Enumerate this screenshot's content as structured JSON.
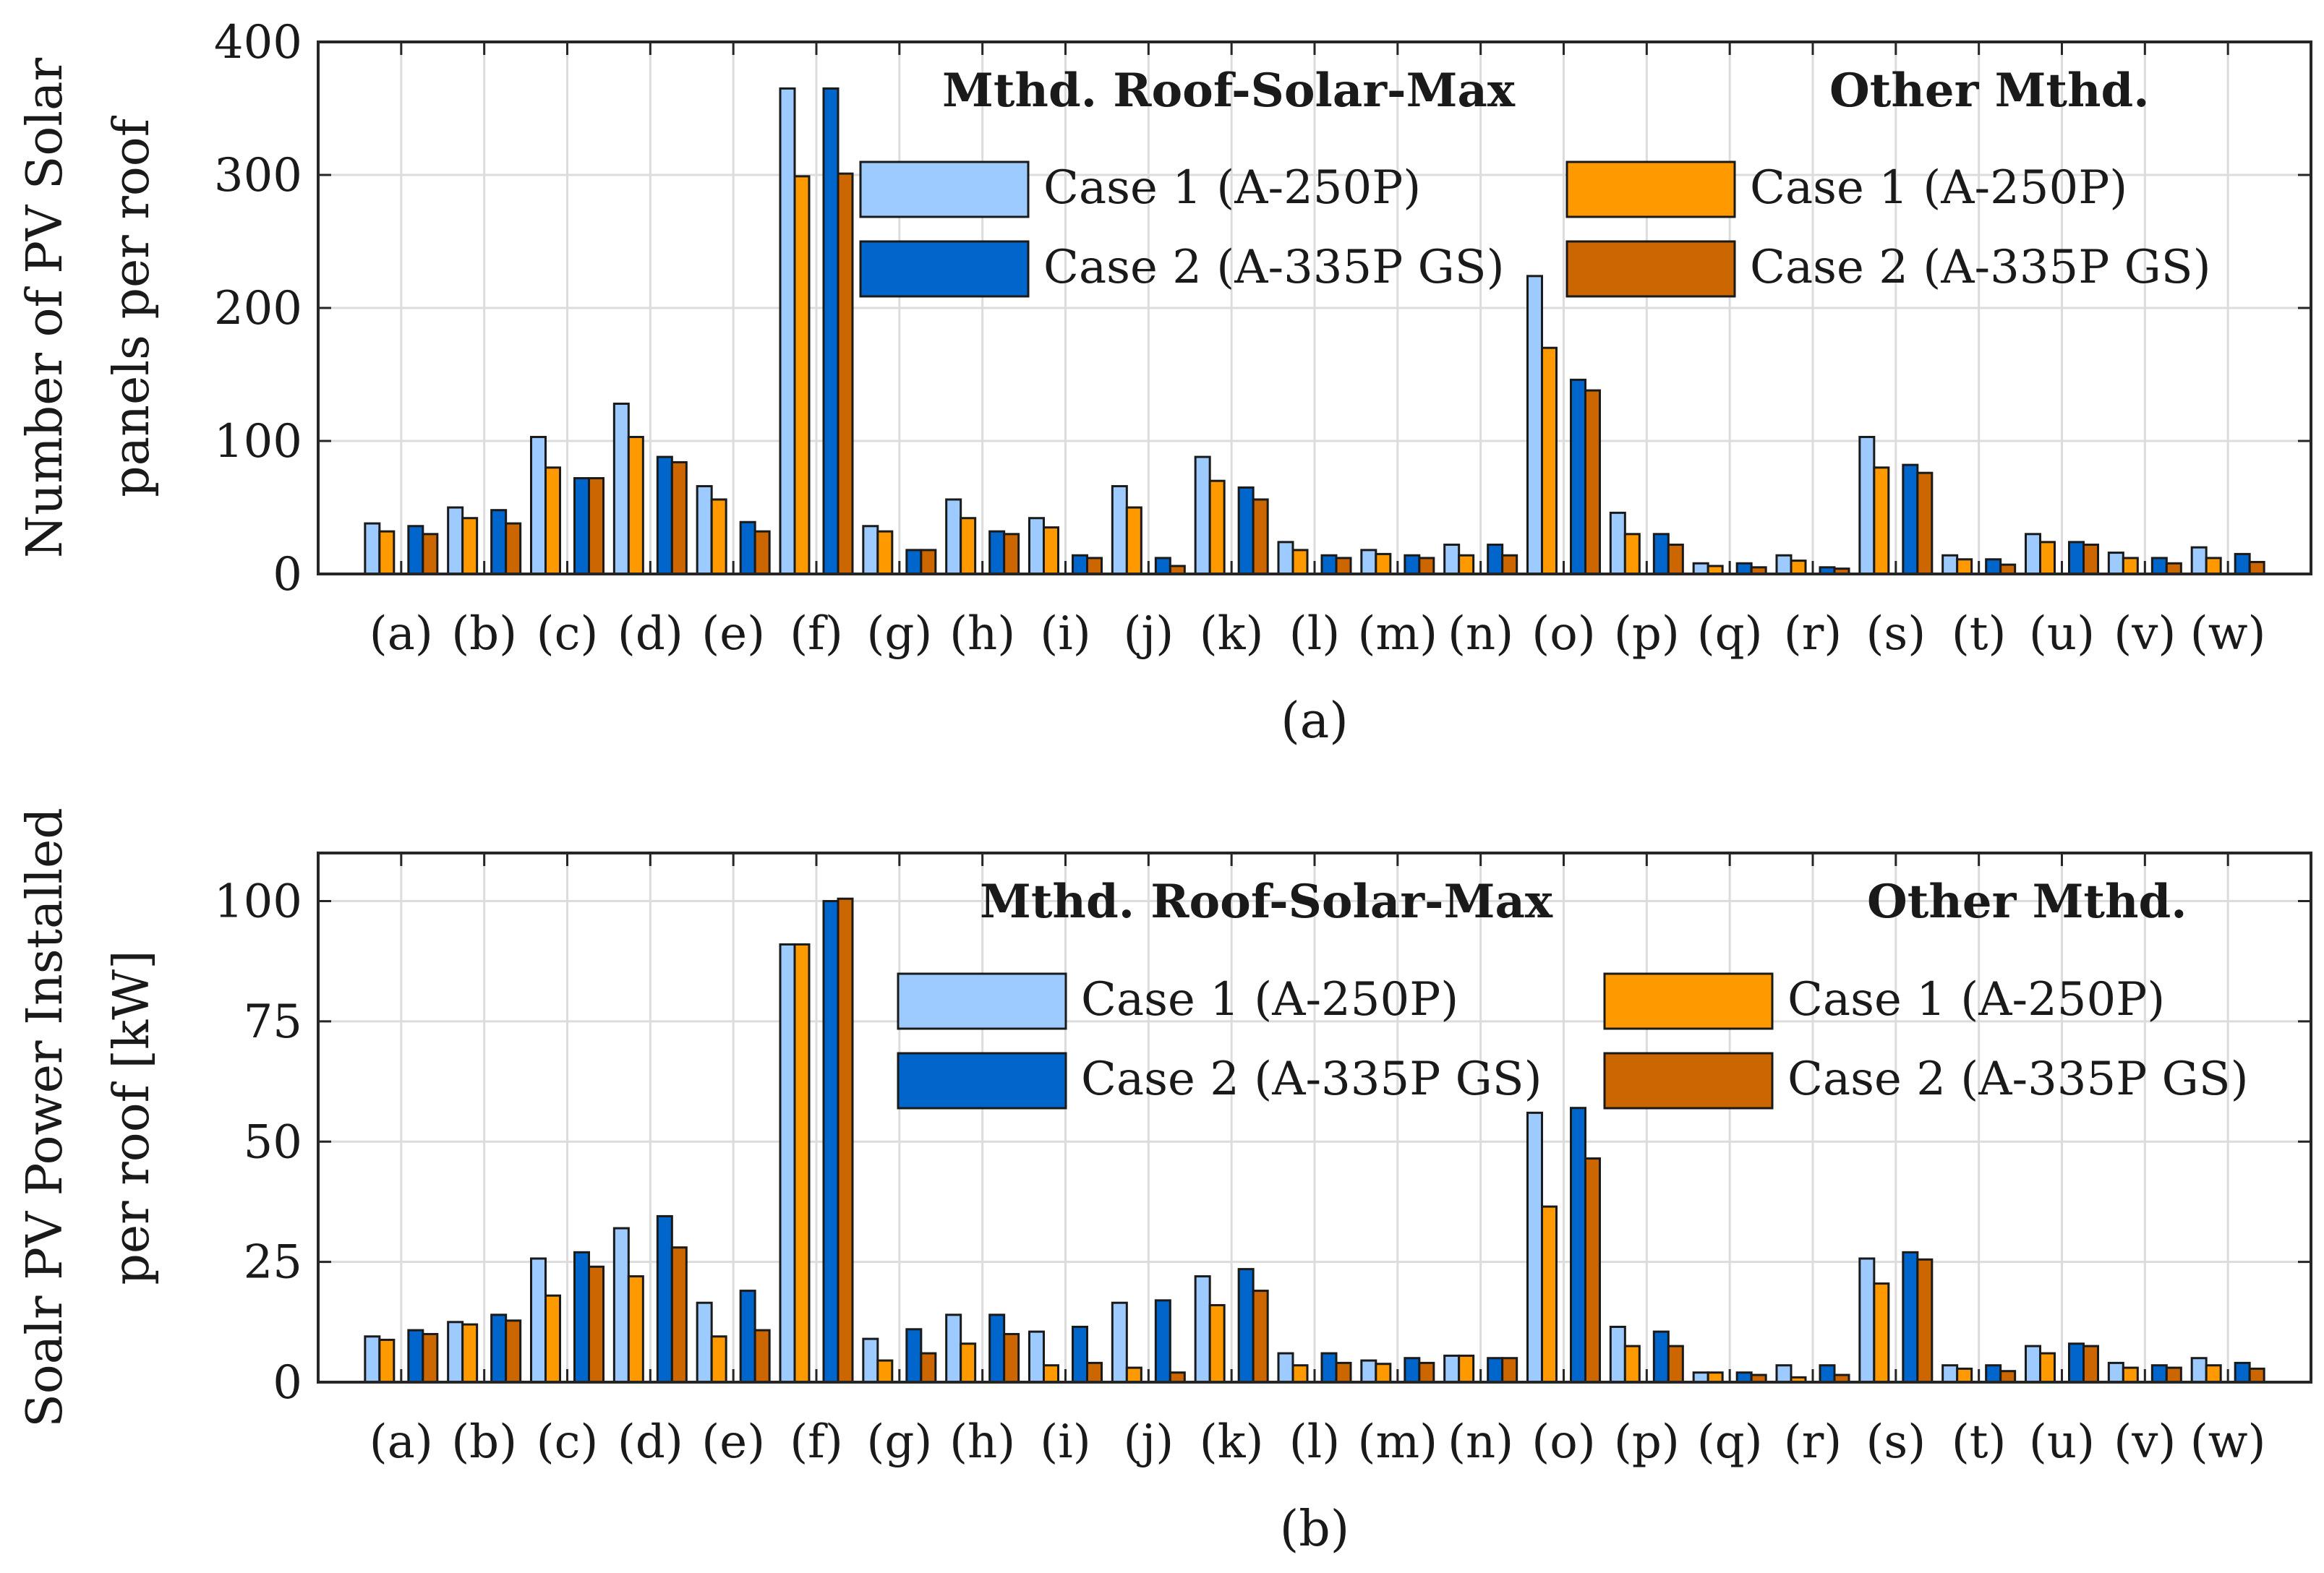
{
  "colors": {
    "case1_roof": "#9ecbff",
    "case2_roof": "#0066cc",
    "case1_other": "#ff9900",
    "case2_other": "#cc6600"
  },
  "chart_data": [
    {
      "type": "bar",
      "caption": "(a)",
      "ylabel_line1": "Number of PV Solar",
      "ylabel_line2": "panels per roof",
      "ylim": [
        0,
        400
      ],
      "yticks": [
        "0",
        "100",
        "200",
        "300",
        "400"
      ],
      "grid": true,
      "categories": [
        "(a)",
        "(b)",
        "(c)",
        "(d)",
        "(e)",
        "(f)",
        "(g)",
        "(h)",
        "(i)",
        "(j)",
        "(k)",
        "(l)",
        "(m)",
        "(n)",
        "(o)",
        "(p)",
        "(q)",
        "(r)",
        "(s)",
        "(t)",
        "(u)",
        "(v)",
        "(w)"
      ],
      "legend_groups": [
        "Mthd. Roof-Solar-Max",
        "Other Mthd."
      ],
      "legend_placement": "top-right",
      "series": [
        {
          "name": "Case 1 (A-250P)",
          "group": "Mthd. Roof-Solar-Max",
          "color": "#9ecbff",
          "values": [
            38,
            50,
            103,
            128,
            66,
            365,
            36,
            56,
            42,
            66,
            88,
            24,
            18,
            22,
            224,
            46,
            8,
            14,
            103,
            14,
            30,
            16,
            20
          ]
        },
        {
          "name": "Case 1 (A-250P)",
          "group": "Other Mthd.",
          "color": "#ff9900",
          "values": [
            32,
            42,
            80,
            103,
            56,
            299,
            32,
            42,
            35,
            50,
            70,
            18,
            15,
            14,
            170,
            30,
            6,
            10,
            80,
            11,
            24,
            12,
            12
          ]
        },
        {
          "name": "Case 2 (A-335P GS)",
          "group": "Mthd. Roof-Solar-Max",
          "color": "#0066cc",
          "values": [
            36,
            48,
            72,
            88,
            39,
            365,
            18,
            32,
            14,
            12,
            65,
            14,
            14,
            22,
            146,
            30,
            8,
            5,
            82,
            11,
            24,
            12,
            15
          ]
        },
        {
          "name": "Case 2 (A-335P GS)",
          "group": "Other Mthd.",
          "color": "#cc6600",
          "values": [
            30,
            38,
            72,
            84,
            32,
            301,
            18,
            30,
            12,
            6,
            56,
            12,
            12,
            14,
            138,
            22,
            5,
            4,
            76,
            7,
            22,
            8,
            9
          ]
        }
      ]
    },
    {
      "type": "bar",
      "caption": "(b)",
      "ylabel_line1": "Soalr PV Power Installed",
      "ylabel_line2": "per roof [kW]",
      "ylim": [
        0,
        110
      ],
      "yticks": [
        "0",
        "25",
        "50",
        "75",
        "100"
      ],
      "grid": true,
      "categories": [
        "(a)",
        "(b)",
        "(c)",
        "(d)",
        "(e)",
        "(f)",
        "(g)",
        "(h)",
        "(i)",
        "(j)",
        "(k)",
        "(l)",
        "(m)",
        "(n)",
        "(o)",
        "(p)",
        "(q)",
        "(r)",
        "(s)",
        "(t)",
        "(u)",
        "(v)",
        "(w)"
      ],
      "legend_groups": [
        "Mthd. Roof-Solar-Max",
        "Other Mthd."
      ],
      "legend_placement": "top-right",
      "series": [
        {
          "name": "Case 1 (A-250P)",
          "group": "Mthd. Roof-Solar-Max",
          "color": "#9ecbff",
          "values": [
            9.5,
            12.5,
            25.7,
            32,
            16.5,
            91,
            9,
            14,
            10.5,
            16.5,
            22,
            6,
            4.5,
            5.5,
            56,
            11.5,
            2,
            3.5,
            25.7,
            3.5,
            7.5,
            4,
            5
          ]
        },
        {
          "name": "Case 1 (A-250P)",
          "group": "Other Mthd.",
          "color": "#ff9900",
          "values": [
            8.8,
            12,
            18,
            22,
            9.5,
            91,
            4.5,
            8,
            3.5,
            3,
            16,
            3.5,
            3.8,
            5.5,
            36.5,
            7.5,
            2,
            1,
            20.5,
            2.8,
            6,
            3,
            3.5
          ]
        },
        {
          "name": "Case 2 (A-335P GS)",
          "group": "Mthd. Roof-Solar-Max",
          "color": "#0066cc",
          "values": [
            10.8,
            14,
            27,
            34.5,
            19,
            100,
            11,
            14,
            11.5,
            17,
            23.5,
            6,
            5,
            5,
            57,
            10.5,
            2,
            3.5,
            27,
            3.5,
            8,
            3.5,
            4
          ]
        },
        {
          "name": "Case 2 (A-335P GS)",
          "group": "Other Mthd.",
          "color": "#cc6600",
          "values": [
            10,
            12.8,
            24,
            28,
            10.8,
            100.5,
            6,
            10,
            4,
            2,
            19,
            4,
            4,
            5,
            46.5,
            7.5,
            1.5,
            1.5,
            25.5,
            2.3,
            7.5,
            3,
            2.8
          ]
        }
      ]
    }
  ]
}
